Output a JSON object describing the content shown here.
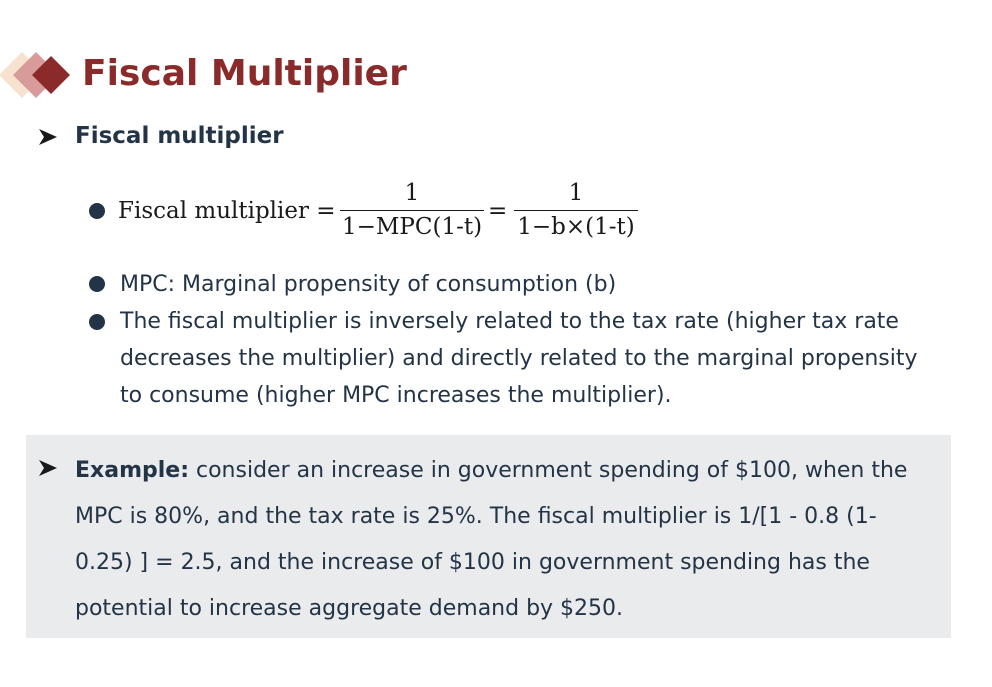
{
  "slide": {
    "title": "Fiscal Multiplier",
    "logo_icon": "diamond-logo-icon",
    "section_heading": "Fiscal multiplier",
    "formula": {
      "lhs": "Fiscal multiplier =",
      "fraction1": {
        "numerator": "1",
        "denominator": "1−MPC(1-t)"
      },
      "equals": "=",
      "fraction2": {
        "numerator": "1",
        "denominator": "1−b×(1-t)"
      }
    },
    "bullets": [
      "MPC: Marginal propensity of consumption (b)",
      "The fiscal multiplier is inversely related to the tax rate (higher tax rate",
      "decreases the multiplier) and directly related to the marginal propensity",
      "to consume (higher MPC increases the multiplier)."
    ],
    "example": {
      "label": "Example:",
      "lines": [
        " consider an increase in government spending of $100, when the",
        "MPC is 80%, and the tax rate is 25%. The fiscal multiplier is 1/[1 - 0.8 (1-",
        "0.25) ] = 2.5, and the increase of $100 in government spending has the",
        "potential to increase aggregate demand by $250."
      ]
    }
  },
  "colors": {
    "title": "#8b2a2a",
    "text": "#243447",
    "example_background": "#eaebed",
    "logo_dark": "#8b2a2a",
    "logo_mid": "#d99a9a",
    "logo_light": "#f6e2cf"
  }
}
